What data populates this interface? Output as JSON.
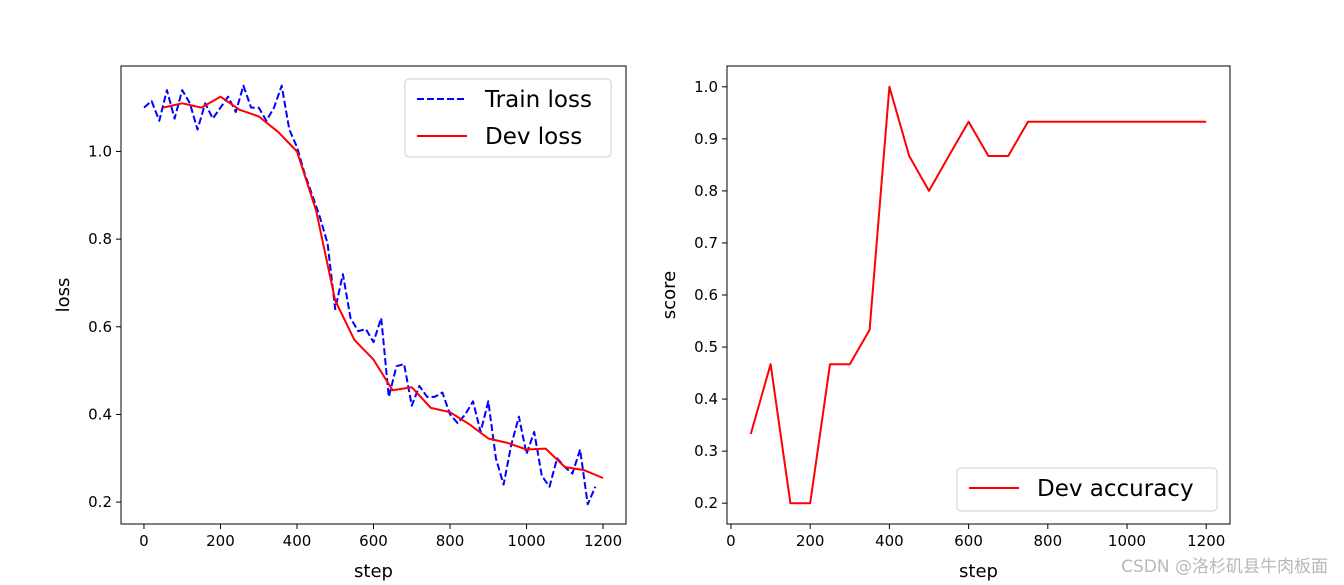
{
  "watermark": "CSDN @洛杉矶县牛肉板面",
  "chart_data": [
    {
      "type": "line",
      "xlabel": "step",
      "ylabel": "loss",
      "xlim": [
        -60,
        1260
      ],
      "ylim": [
        0.15,
        1.195
      ],
      "xticks": [
        0,
        200,
        400,
        600,
        800,
        1000,
        1200
      ],
      "yticks": [
        0.2,
        0.4,
        0.6,
        0.8,
        1.0
      ],
      "legend_position": "upper right",
      "grid": false,
      "series": [
        {
          "name": "Train loss",
          "color": "#0000ff",
          "linestyle": "dashed",
          "x": [
            0,
            20,
            40,
            60,
            80,
            100,
            120,
            140,
            160,
            180,
            200,
            220,
            240,
            260,
            280,
            300,
            320,
            340,
            360,
            380,
            400,
            420,
            440,
            460,
            480,
            500,
            520,
            540,
            560,
            580,
            600,
            620,
            640,
            660,
            680,
            700,
            720,
            740,
            760,
            780,
            800,
            820,
            840,
            860,
            880,
            900,
            920,
            940,
            960,
            980,
            1000,
            1020,
            1040,
            1060,
            1080,
            1100,
            1120,
            1140,
            1160,
            1180
          ],
          "values": [
            1.1,
            1.115,
            1.07,
            1.14,
            1.075,
            1.14,
            1.11,
            1.05,
            1.11,
            1.075,
            1.1,
            1.125,
            1.09,
            1.15,
            1.1,
            1.1,
            1.07,
            1.1,
            1.15,
            1.05,
            1.01,
            0.95,
            0.9,
            0.85,
            0.79,
            0.64,
            0.72,
            0.62,
            0.59,
            0.595,
            0.565,
            0.62,
            0.44,
            0.51,
            0.515,
            0.42,
            0.465,
            0.44,
            0.44,
            0.45,
            0.4,
            0.38,
            0.4,
            0.43,
            0.36,
            0.43,
            0.3,
            0.24,
            0.33,
            0.395,
            0.31,
            0.36,
            0.26,
            0.235,
            0.3,
            0.28,
            0.265,
            0.32,
            0.195,
            0.235
          ]
        },
        {
          "name": "Dev loss",
          "color": "#ff0000",
          "linestyle": "solid",
          "x": [
            50,
            100,
            150,
            200,
            250,
            300,
            350,
            400,
            450,
            500,
            550,
            600,
            650,
            700,
            750,
            800,
            850,
            900,
            950,
            1000,
            1050,
            1100,
            1150,
            1200
          ],
          "values": [
            1.1,
            1.11,
            1.1,
            1.125,
            1.095,
            1.08,
            1.045,
            1.0,
            0.865,
            0.66,
            0.57,
            0.525,
            0.455,
            0.462,
            0.415,
            0.405,
            0.378,
            0.345,
            0.335,
            0.32,
            0.322,
            0.28,
            0.273,
            0.255
          ]
        }
      ]
    },
    {
      "type": "line",
      "xlabel": "step",
      "ylabel": "score",
      "xlim": [
        -10,
        1260
      ],
      "ylim": [
        0.16,
        1.04
      ],
      "xticks": [
        0,
        200,
        400,
        600,
        800,
        1000,
        1200
      ],
      "yticks": [
        0.2,
        0.3,
        0.4,
        0.5,
        0.6,
        0.7,
        0.8,
        0.9,
        1.0
      ],
      "legend_position": "lower right",
      "grid": false,
      "series": [
        {
          "name": "Dev accuracy",
          "color": "#ff0000",
          "linestyle": "solid",
          "x": [
            50,
            100,
            150,
            200,
            250,
            300,
            350,
            400,
            450,
            500,
            550,
            600,
            650,
            700,
            750,
            800,
            850,
            900,
            950,
            1000,
            1050,
            1100,
            1150,
            1200
          ],
          "values": [
            0.333,
            0.467,
            0.2,
            0.2,
            0.467,
            0.467,
            0.533,
            1.0,
            0.867,
            0.8,
            0.867,
            0.933,
            0.867,
            0.867,
            0.933,
            0.933,
            0.933,
            0.933,
            0.933,
            0.933,
            0.933,
            0.933,
            0.933,
            0.933
          ]
        }
      ]
    }
  ]
}
